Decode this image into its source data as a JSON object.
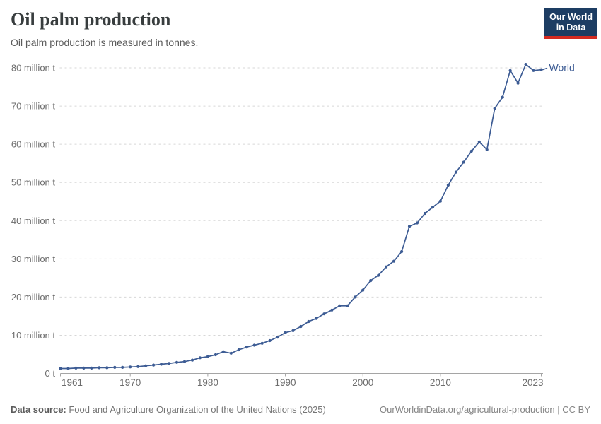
{
  "header": {
    "title": "Oil palm production",
    "subtitle": "Oil palm production is measured in tonnes.",
    "logo": {
      "line1": "Our World",
      "line2": "in Data",
      "bg_color": "#1d3d63",
      "accent_color": "#d42b21"
    }
  },
  "chart_data": {
    "type": "line",
    "title": "Oil palm production",
    "subtitle": "Oil palm production is measured in tonnes.",
    "unit": "tonnes",
    "xlim": [
      1961,
      2023
    ],
    "ylim": [
      0,
      80
    ],
    "grid": "horizontal-dashed",
    "grid_color": "#d7d7d7",
    "axis_color": "#a5a5a5",
    "tick_label_color": "#6d6d6d",
    "legend_position": "end-of-line-label",
    "x_ticks": [
      {
        "value": 1961,
        "label": "1961",
        "align": "start"
      },
      {
        "value": 1970,
        "label": "1970",
        "align": "middle"
      },
      {
        "value": 1980,
        "label": "1980",
        "align": "middle"
      },
      {
        "value": 1990,
        "label": "1990",
        "align": "middle"
      },
      {
        "value": 2000,
        "label": "2000",
        "align": "middle"
      },
      {
        "value": 2010,
        "label": "2010",
        "align": "middle"
      },
      {
        "value": 2023,
        "label": "2023",
        "align": "end"
      }
    ],
    "y_ticks": [
      {
        "value": 0,
        "label": "0 t"
      },
      {
        "value": 10,
        "label": "10 million t"
      },
      {
        "value": 20,
        "label": "20 million t"
      },
      {
        "value": 30,
        "label": "30 million t"
      },
      {
        "value": 40,
        "label": "40 million t"
      },
      {
        "value": 50,
        "label": "50 million t"
      },
      {
        "value": 60,
        "label": "60 million t"
      },
      {
        "value": 70,
        "label": "70 million t"
      },
      {
        "value": 80,
        "label": "80 million t"
      }
    ],
    "series": [
      {
        "name": "World",
        "color": "#3d5c94",
        "x": [
          1961,
          1962,
          1963,
          1964,
          1965,
          1966,
          1967,
          1968,
          1969,
          1970,
          1971,
          1972,
          1973,
          1974,
          1975,
          1976,
          1977,
          1978,
          1979,
          1980,
          1981,
          1982,
          1983,
          1984,
          1985,
          1986,
          1987,
          1988,
          1989,
          1990,
          1991,
          1992,
          1993,
          1994,
          1995,
          1996,
          1997,
          1998,
          1999,
          2000,
          2001,
          2002,
          2003,
          2004,
          2005,
          2006,
          2007,
          2008,
          2009,
          2010,
          2011,
          2012,
          2013,
          2014,
          2015,
          2016,
          2017,
          2018,
          2019,
          2020,
          2021,
          2022,
          2023
        ],
        "values": [
          1.3,
          1.3,
          1.4,
          1.4,
          1.4,
          1.5,
          1.5,
          1.6,
          1.6,
          1.7,
          1.8,
          2.0,
          2.2,
          2.4,
          2.6,
          2.9,
          3.1,
          3.5,
          4.1,
          4.4,
          4.9,
          5.7,
          5.3,
          6.2,
          6.9,
          7.4,
          7.9,
          8.6,
          9.5,
          10.7,
          11.2,
          12.3,
          13.6,
          14.4,
          15.6,
          16.6,
          17.7,
          17.7,
          20.0,
          21.8,
          24.3,
          25.7,
          27.9,
          29.4,
          31.9,
          38.5,
          39.4,
          41.9,
          43.5,
          45.1,
          49.3,
          52.7,
          55.3,
          58.2,
          60.6,
          58.6,
          69.4,
          72.3,
          79.3,
          76.0,
          80.9,
          79.3,
          79.5
        ]
      }
    ]
  },
  "footer": {
    "source_label": "Data source:",
    "source_text": " Food and Agriculture Organization of the United Nations (2025)",
    "link": "OurWorldinData.org/agricultural-production",
    "separator": " | ",
    "license": "CC BY"
  }
}
